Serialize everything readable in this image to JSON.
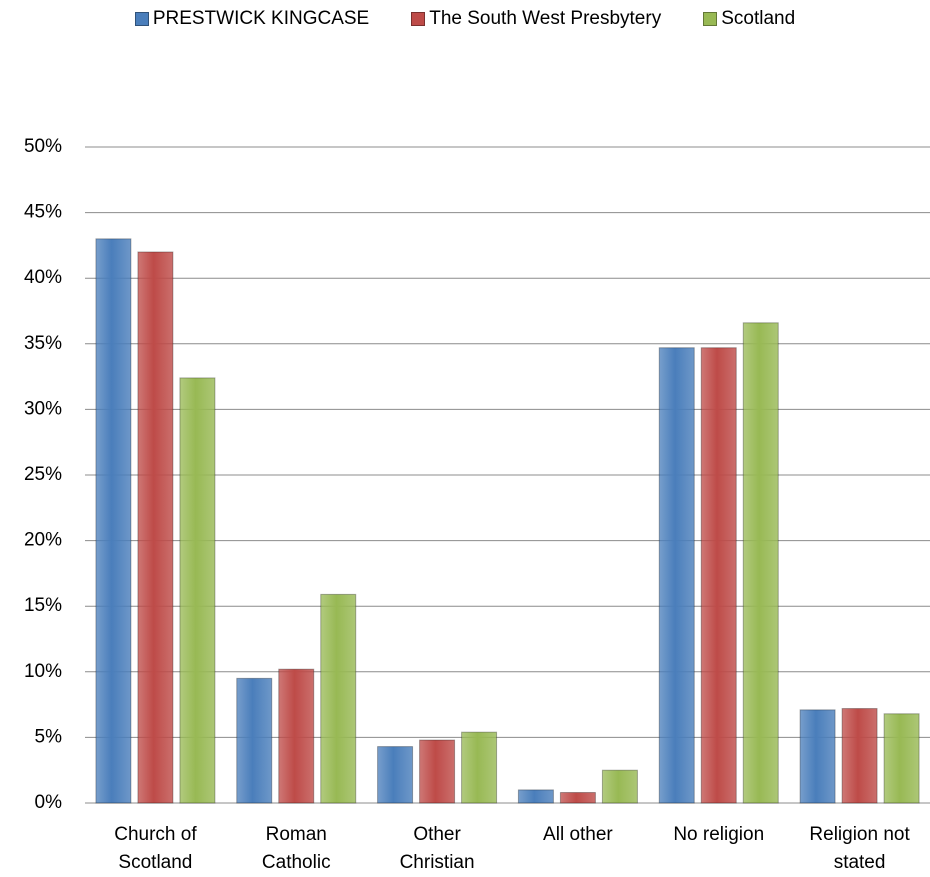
{
  "chart_data": {
    "type": "bar",
    "categories": [
      "Church of Scotland",
      "Roman Catholic",
      "Other Christian",
      "All other",
      "No religion",
      "Religion not stated"
    ],
    "series": [
      {
        "name": "PRESTWICK KINGCASE",
        "color": "#4a7ebb",
        "values": [
          43.0,
          9.5,
          4.3,
          1.0,
          34.7,
          7.1
        ]
      },
      {
        "name": "The South West Presbytery",
        "color": "#be4b48",
        "values": [
          42.0,
          10.2,
          4.8,
          0.8,
          34.7,
          7.2
        ]
      },
      {
        "name": "Scotland",
        "color": "#98b954",
        "values": [
          32.4,
          15.9,
          5.4,
          2.5,
          36.6,
          6.8
        ]
      }
    ],
    "ylim": [
      0,
      50
    ],
    "yticks": [
      {
        "value": 0,
        "label": "0%"
      },
      {
        "value": 5,
        "label": "5%"
      },
      {
        "value": 10,
        "label": "10%"
      },
      {
        "value": 15,
        "label": "15%"
      },
      {
        "value": 20,
        "label": "20%"
      },
      {
        "value": 25,
        "label": "25%"
      },
      {
        "value": 30,
        "label": "30%"
      },
      {
        "value": 35,
        "label": "35%"
      },
      {
        "value": 40,
        "label": "40%"
      },
      {
        "value": 45,
        "label": "45%"
      },
      {
        "value": 50,
        "label": "50%"
      }
    ],
    "grid": true,
    "legend": "top"
  }
}
